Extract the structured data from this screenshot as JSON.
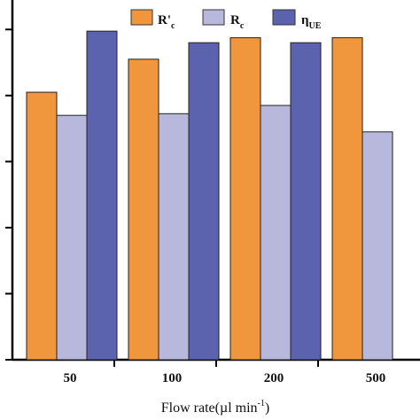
{
  "chart_data": {
    "type": "bar",
    "categories": [
      "50",
      "100",
      "200",
      "500"
    ],
    "series": [
      {
        "name": "R'c",
        "values": [
          0.81,
          0.91,
          0.975,
          0.975
        ],
        "color": "#F0963C"
      },
      {
        "name": "Rc",
        "values": [
          0.74,
          0.745,
          0.77,
          0.69
        ],
        "color": "#B8B8DC"
      },
      {
        "name": "ηUE",
        "values": [
          0.995,
          0.96,
          0.96,
          null
        ],
        "color": "#5B62AE"
      }
    ],
    "xlabel": "Flow rate(µl min⁻¹)",
    "ylabel": "",
    "ylim": [
      0,
      1.1
    ],
    "legend_position": "top",
    "grid": false
  },
  "legend": [
    {
      "main": "R'",
      "sub": "c",
      "color": "#F0963C"
    },
    {
      "main": "R",
      "sub": "c",
      "color": "#B8B8DC"
    },
    {
      "main": "η",
      "sub": "UE",
      "color": "#5B62AE"
    }
  ],
  "xaxis": {
    "label_main": "Flow rate(µl min",
    "label_sup": "-1",
    "label_end": ")"
  }
}
